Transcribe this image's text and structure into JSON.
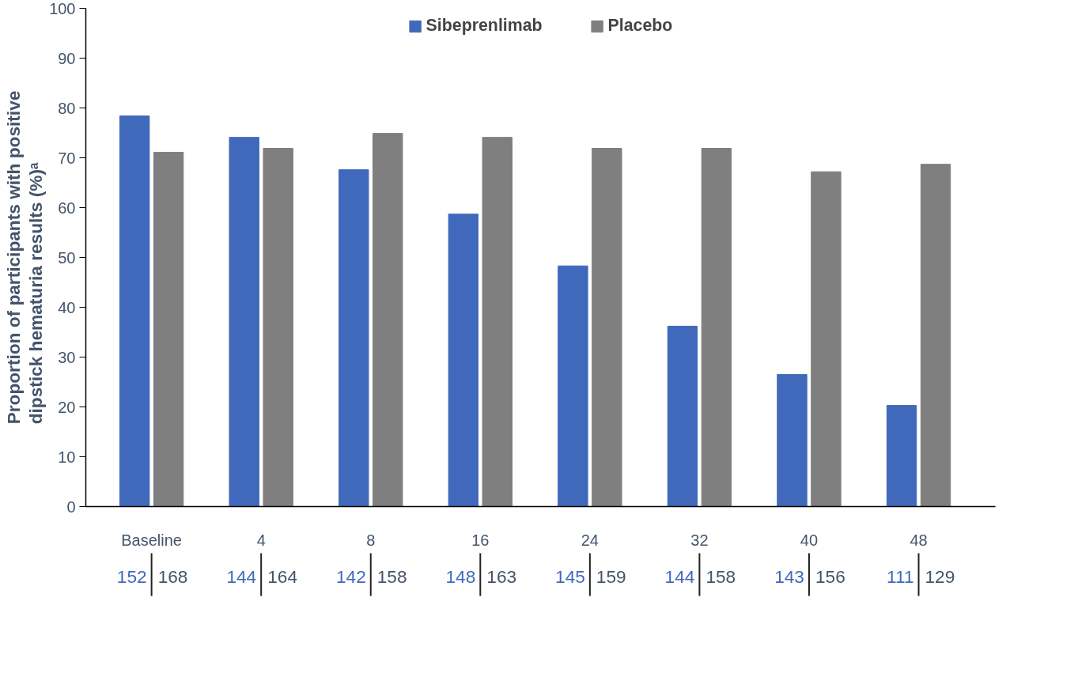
{
  "chart_data": {
    "type": "bar",
    "ylabel": "Proportion of participants with positive\ndipstick hematuria results (%)ᵃ",
    "categories": [
      "Baseline",
      "4",
      "8",
      "16",
      "24",
      "32",
      "40",
      "48"
    ],
    "series": [
      {
        "name": "Sibeprenlimab",
        "color": "#4169bb",
        "values": [
          78.4,
          74.1,
          67.6,
          58.7,
          48.3,
          36.2,
          26.5,
          20.3
        ]
      },
      {
        "name": "Placebo",
        "color": "#7f7f7f",
        "values": [
          71.1,
          71.9,
          74.9,
          74.1,
          71.9,
          71.9,
          67.2,
          68.7
        ]
      }
    ],
    "ylim": [
      0,
      100
    ],
    "yticks": [
      0,
      10,
      20,
      30,
      40,
      50,
      60,
      70,
      80,
      90,
      100
    ],
    "grid": false,
    "legend": "top",
    "annotations": [
      "152",
      "168",
      "144",
      "164",
      "142",
      "158",
      "148",
      "163",
      "145",
      "159",
      "144",
      "158",
      "143",
      "156",
      "111",
      "129"
    ]
  }
}
